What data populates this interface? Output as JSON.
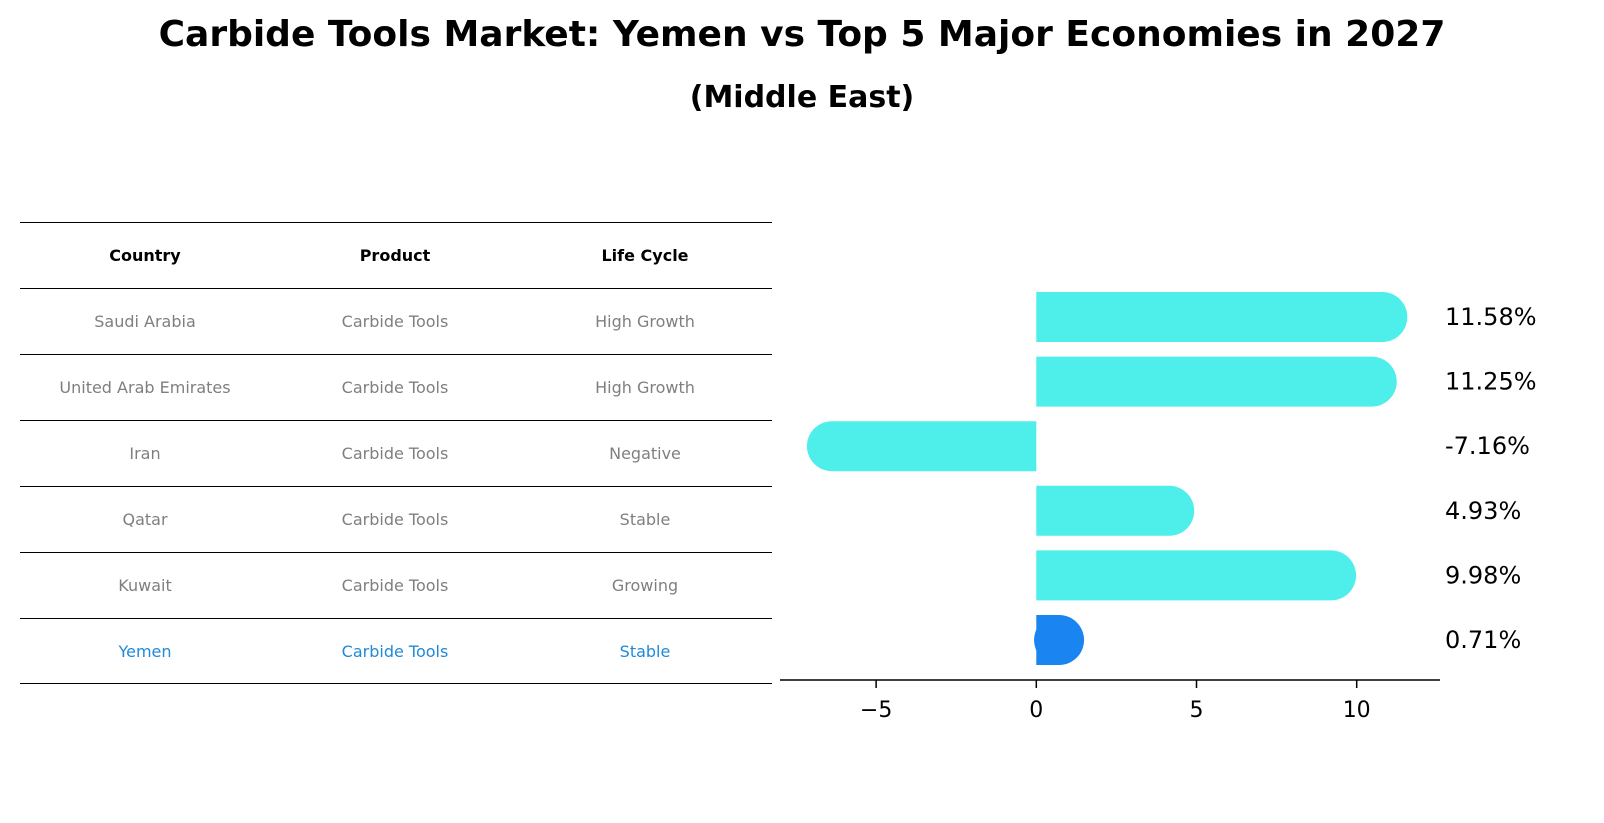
{
  "title": "Carbide Tools Market: Yemen vs Top 5 Major Economies in 2027",
  "subtitle": "(Middle East)",
  "table": {
    "headers": [
      "Country",
      "Product",
      "Life Cycle"
    ],
    "rows": [
      [
        "Saudi Arabia",
        "Carbide Tools",
        "High Growth"
      ],
      [
        "United Arab Emirates",
        "Carbide Tools",
        "High Growth"
      ],
      [
        "Iran",
        "Carbide Tools",
        "Negative"
      ],
      [
        "Qatar",
        "Carbide Tools",
        "Stable"
      ],
      [
        "Kuwait",
        "Carbide Tools",
        "Growing"
      ],
      [
        "Yemen",
        "Carbide Tools",
        "Stable"
      ]
    ],
    "highlight_row": 5
  },
  "chart_data": {
    "type": "bar",
    "orientation": "horizontal",
    "categories": [
      "Saudi Arabia",
      "United Arab Emirates",
      "Iran",
      "Qatar",
      "Kuwait",
      "Yemen"
    ],
    "values": [
      11.58,
      11.25,
      -7.16,
      4.93,
      9.98,
      0.71
    ],
    "labels": [
      "11.58%",
      "11.25%",
      "-7.16%",
      "4.93%",
      "9.98%",
      "0.71%"
    ],
    "xlim": [
      -8,
      12.6
    ],
    "xticks": [
      -5,
      0,
      5,
      10
    ],
    "xtick_labels": [
      "−5",
      "0",
      "5",
      "10"
    ],
    "grid": false,
    "colors": {
      "bar": "#4eeeea",
      "highlight": "#1a84f0"
    },
    "highlight_index": 5
  }
}
